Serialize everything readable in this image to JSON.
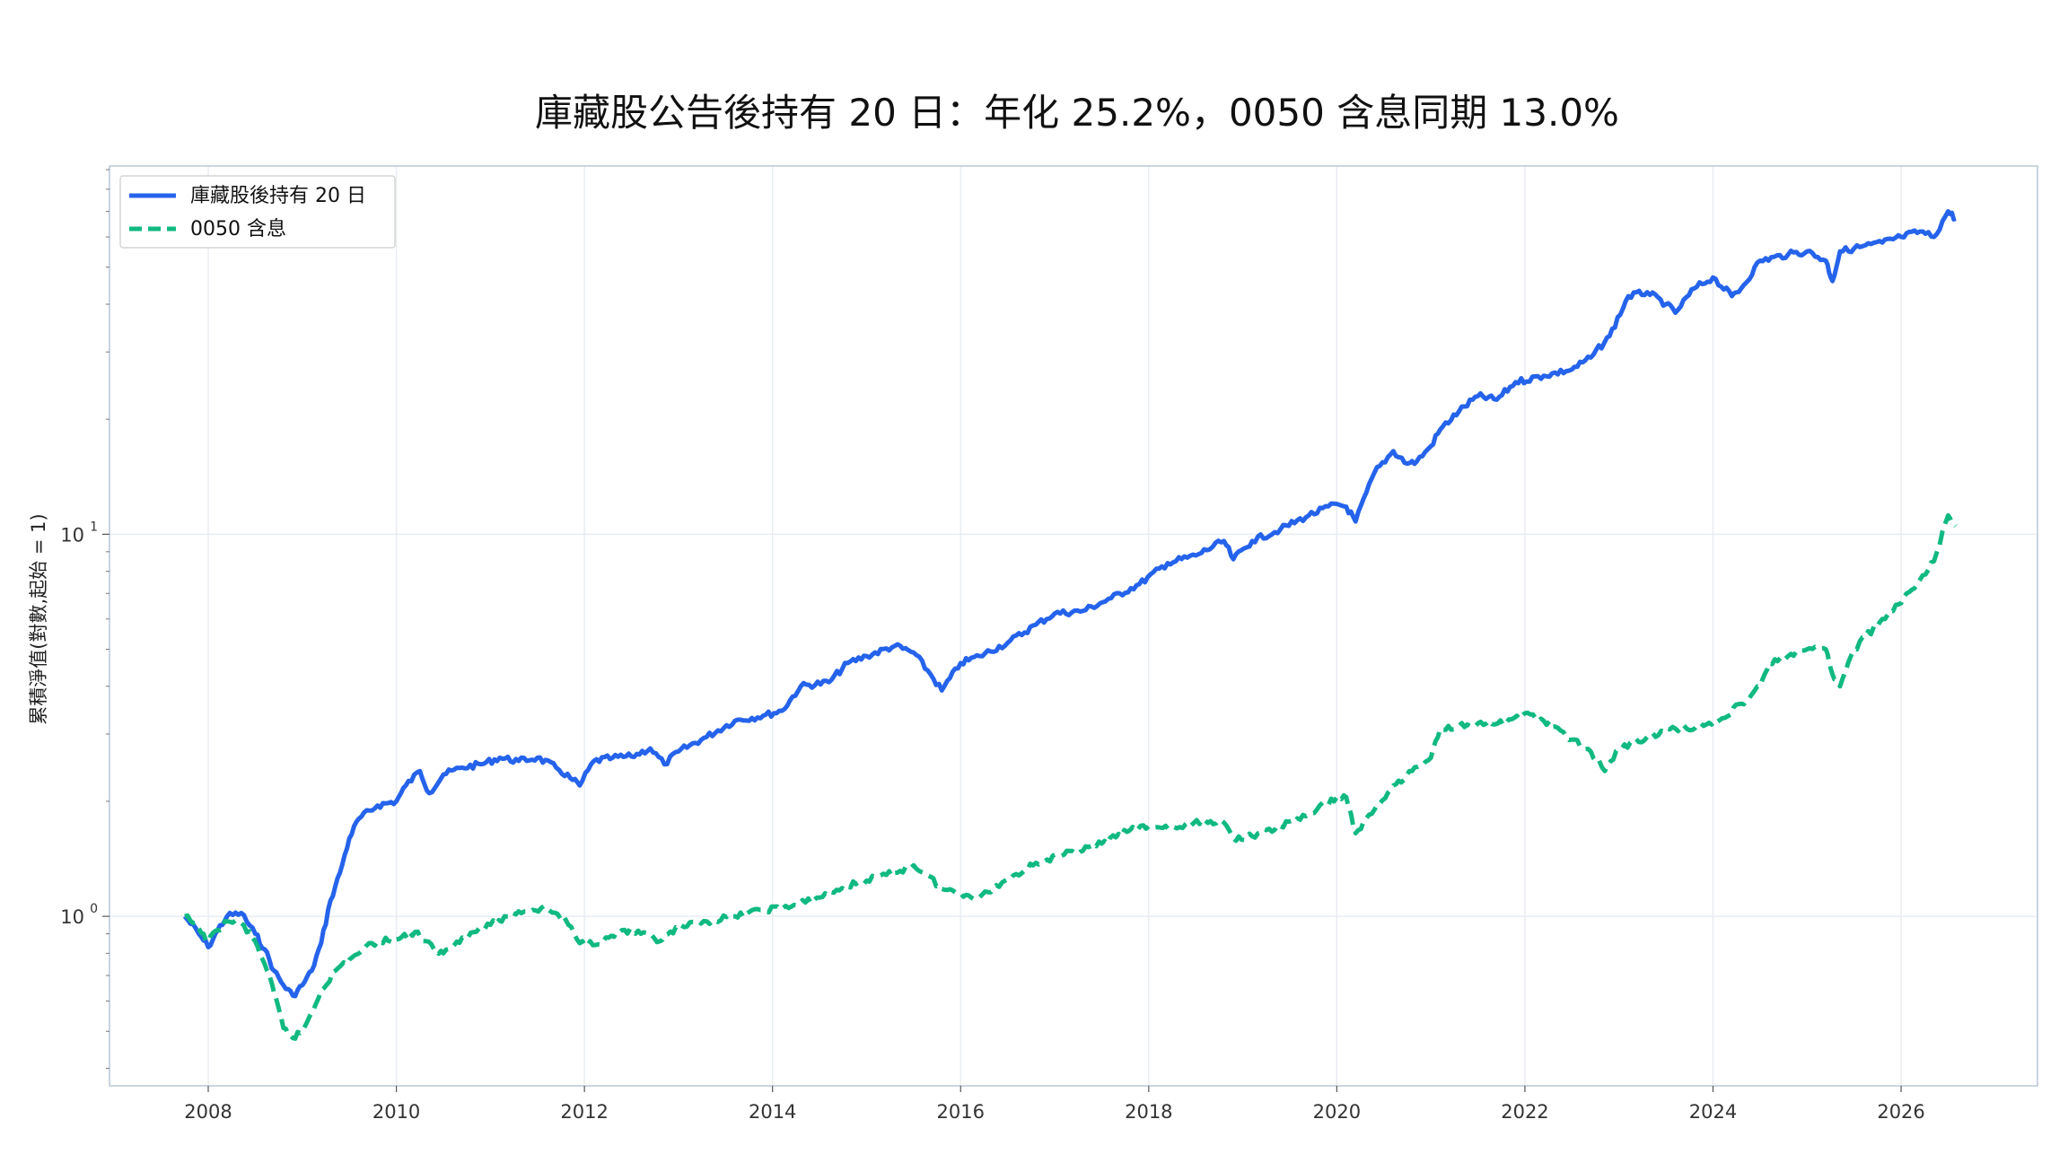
{
  "chart_data": {
    "type": "line",
    "title": "庫藏股公告後持有 20 日：年化 25.2%，0050 含息同期 13.0%",
    "xlabel": "",
    "ylabel": "累積淨值(對數,起始 = 1)",
    "x_ticks": [
      "2008",
      "2010",
      "2012",
      "2014",
      "2016",
      "2018",
      "2020",
      "2022",
      "2024",
      "2026"
    ],
    "y_scale": "log",
    "y_ticks": [
      {
        "base": "10",
        "exp": "0"
      },
      {
        "base": "10",
        "exp": "1"
      }
    ],
    "xlim": [
      2006.95,
      2027.45
    ],
    "ylim": [
      0.36,
      92
    ],
    "grid": true,
    "legend": "top-left",
    "series": [
      {
        "name": "庫藏股後持有 20 日",
        "color": "#2563eb",
        "style": "solid",
        "x": [
          2007.75,
          2007.9,
          2008.0,
          2008.1,
          2008.2,
          2008.35,
          2008.5,
          2008.6,
          2008.7,
          2008.8,
          2008.9,
          2009.0,
          2009.1,
          2009.2,
          2009.3,
          2009.4,
          2009.5,
          2009.6,
          2009.8,
          2010.0,
          2010.1,
          2010.25,
          2010.35,
          2010.5,
          2010.7,
          2010.9,
          2011.1,
          2011.3,
          2011.5,
          2011.7,
          2011.85,
          2011.95,
          2012.1,
          2012.3,
          2012.5,
          2012.7,
          2012.85,
          2013.0,
          2013.3,
          2013.6,
          2013.9,
          2014.1,
          2014.3,
          2014.6,
          2014.8,
          2015.0,
          2015.3,
          2015.5,
          2015.65,
          2015.8,
          2016.0,
          2016.2,
          2016.5,
          2016.8,
          2017.0,
          2017.3,
          2017.6,
          2017.9,
          2018.2,
          2018.5,
          2018.8,
          2018.9,
          2019.1,
          2019.4,
          2019.7,
          2020.0,
          2020.1,
          2020.2,
          2020.4,
          2020.6,
          2020.75,
          2020.85,
          2021.0,
          2021.1,
          2021.3,
          2021.5,
          2021.7,
          2021.9,
          2022.2,
          2022.5,
          2022.7,
          2022.9,
          2023.1,
          2023.3,
          2023.5,
          2023.6,
          2023.8,
          2024.0,
          2024.2,
          2024.3,
          2024.5,
          2024.8,
          2025.0,
          2025.2,
          2025.27,
          2025.35,
          2025.5,
          2025.8,
          2026.0,
          2026.2,
          2026.35,
          2026.5,
          2026.58
        ],
        "values": [
          1.0,
          0.9,
          0.83,
          0.92,
          1.0,
          1.02,
          0.9,
          0.82,
          0.72,
          0.66,
          0.62,
          0.66,
          0.72,
          0.85,
          1.1,
          1.3,
          1.6,
          1.8,
          1.95,
          2.0,
          2.2,
          2.4,
          2.1,
          2.35,
          2.45,
          2.5,
          2.6,
          2.55,
          2.6,
          2.45,
          2.3,
          2.2,
          2.55,
          2.6,
          2.62,
          2.75,
          2.5,
          2.7,
          2.95,
          3.25,
          3.35,
          3.45,
          4.0,
          4.1,
          4.6,
          4.8,
          5.1,
          4.9,
          4.4,
          3.9,
          4.6,
          4.8,
          5.2,
          5.8,
          6.2,
          6.3,
          6.8,
          7.4,
          8.4,
          8.8,
          9.6,
          8.6,
          9.6,
          10.3,
          11.2,
          12.0,
          11.8,
          10.8,
          14.5,
          16.5,
          15.3,
          15.5,
          17.0,
          18.8,
          21.0,
          23.0,
          22.5,
          25.0,
          26.0,
          27.0,
          29.0,
          33.0,
          42.0,
          43.0,
          40.0,
          38.0,
          44.0,
          47.0,
          42.0,
          44.0,
          52.0,
          54.0,
          55.0,
          52.0,
          46.0,
          55.0,
          56.0,
          58.0,
          60.0,
          62.0,
          60.0,
          70.0,
          67.0
        ]
      },
      {
        "name": "0050 含息",
        "color": "#10b981",
        "style": "dashed",
        "x": [
          2007.75,
          2007.9,
          2008.0,
          2008.1,
          2008.2,
          2008.35,
          2008.5,
          2008.6,
          2008.7,
          2008.8,
          2008.9,
          2009.0,
          2009.1,
          2009.2,
          2009.35,
          2009.5,
          2009.65,
          2009.8,
          2010.0,
          2010.2,
          2010.4,
          2010.5,
          2010.7,
          2011.0,
          2011.3,
          2011.6,
          2011.8,
          2011.95,
          2012.2,
          2012.4,
          2012.6,
          2012.8,
          2013.0,
          2013.3,
          2013.6,
          2013.9,
          2014.2,
          2014.5,
          2014.8,
          2015.0,
          2015.3,
          2015.5,
          2015.65,
          2015.8,
          2016.0,
          2016.2,
          2016.5,
          2016.8,
          2017.1,
          2017.5,
          2017.8,
          2018.0,
          2018.3,
          2018.6,
          2018.8,
          2018.9,
          2019.1,
          2019.4,
          2019.7,
          2020.0,
          2020.1,
          2020.2,
          2020.4,
          2020.6,
          2020.8,
          2021.0,
          2021.1,
          2021.3,
          2021.5,
          2021.8,
          2022.0,
          2022.2,
          2022.5,
          2022.7,
          2022.85,
          2023.0,
          2023.3,
          2023.6,
          2023.9,
          2024.1,
          2024.3,
          2024.5,
          2024.6,
          2024.8,
          2025.0,
          2025.2,
          2025.27,
          2025.35,
          2025.5,
          2025.8,
          2026.0,
          2026.2,
          2026.35,
          2026.5,
          2026.58
        ],
        "values": [
          1.0,
          0.93,
          0.86,
          0.92,
          0.97,
          0.96,
          0.86,
          0.75,
          0.63,
          0.51,
          0.48,
          0.5,
          0.56,
          0.64,
          0.72,
          0.77,
          0.82,
          0.86,
          0.87,
          0.91,
          0.82,
          0.8,
          0.88,
          0.95,
          1.03,
          1.05,
          0.98,
          0.85,
          0.86,
          0.92,
          0.9,
          0.86,
          0.93,
          0.97,
          1.0,
          1.04,
          1.06,
          1.12,
          1.2,
          1.24,
          1.3,
          1.36,
          1.28,
          1.18,
          1.15,
          1.12,
          1.25,
          1.38,
          1.45,
          1.55,
          1.68,
          1.72,
          1.7,
          1.78,
          1.76,
          1.6,
          1.62,
          1.72,
          1.85,
          2.05,
          2.05,
          1.65,
          1.9,
          2.2,
          2.4,
          2.6,
          3.1,
          3.15,
          3.2,
          3.2,
          3.4,
          3.25,
          2.9,
          2.7,
          2.4,
          2.75,
          2.95,
          3.1,
          3.15,
          3.3,
          3.6,
          4.0,
          4.6,
          4.8,
          5.0,
          5.0,
          4.3,
          4.0,
          5.0,
          6.0,
          6.6,
          7.6,
          8.5,
          11.2,
          10.5
        ]
      }
    ]
  }
}
